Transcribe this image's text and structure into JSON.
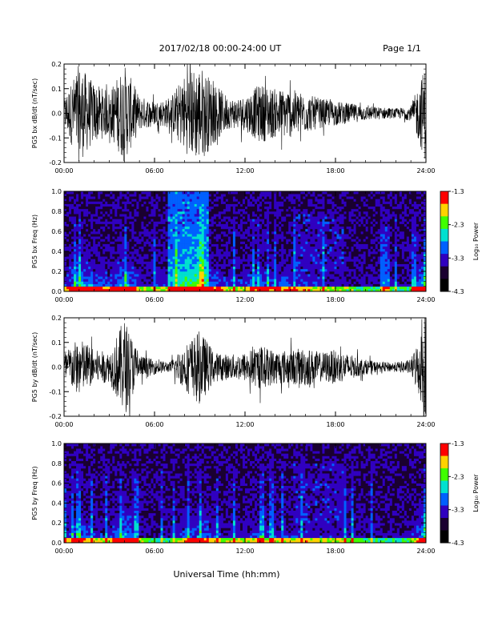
{
  "header": {
    "title": "2017/02/18  00:00-24:00 UT",
    "page": "Page 1/1"
  },
  "xlabel": "Universal Time (hh:mm)",
  "colorbar": {
    "label": "Log₁₀ Power",
    "ticks": [
      "-1.3",
      "-2.3",
      "-3.3",
      "-4.3"
    ],
    "colors": [
      "#ff0000",
      "#ffd200",
      "#40ff00",
      "#00e0d0",
      "#0060ff",
      "#3000c0",
      "#1a0030",
      "#000000"
    ]
  },
  "chart_data": [
    {
      "type": "line",
      "title": "",
      "ylabel": "PG5 bx dB/dt (nT/sec)",
      "xlabel": "",
      "xlim": [
        "00:00",
        "24:00"
      ],
      "xticks": [
        "00:00",
        "06:00",
        "12:00",
        "18:00",
        "24:00"
      ],
      "ylim": [
        -0.2,
        0.2
      ],
      "yticks": [
        "-0.2",
        "-0.1",
        "0.0",
        "0.1",
        "0.2"
      ],
      "series": [
        {
          "name": "",
          "envelope_hours": [
            0,
            1,
            2,
            3,
            4,
            5,
            6,
            7,
            8,
            9,
            10,
            11,
            12,
            13,
            14,
            15,
            16,
            17,
            18,
            19,
            20,
            21,
            22,
            23,
            24
          ],
          "amplitude": [
            0.06,
            0.2,
            0.12,
            0.09,
            0.2,
            0.07,
            0.05,
            0.06,
            0.16,
            0.2,
            0.12,
            0.06,
            0.07,
            0.12,
            0.1,
            0.1,
            0.08,
            0.06,
            0.05,
            0.04,
            0.03,
            0.025,
            0.02,
            0.03,
            0.2
          ]
        }
      ]
    },
    {
      "type": "heatmap",
      "title": "",
      "ylabel": "PG5 bx Freq (Hz)",
      "xlim": [
        "00:00",
        "24:00"
      ],
      "xticks": [
        "00:00",
        "06:00",
        "12:00",
        "18:00",
        "24:00"
      ],
      "ylim": [
        0.0,
        1.0
      ],
      "yticks": [
        "0.0",
        "0.2",
        "0.4",
        "0.6",
        "0.8",
        "1.0"
      ],
      "zlabel": "Log10 Power",
      "zlim": [
        -4.3,
        -1.3
      ]
    },
    {
      "type": "line",
      "title": "",
      "ylabel": "PG5 by dB/dt (nT/sec)",
      "xlabel": "",
      "xlim": [
        "00:00",
        "24:00"
      ],
      "xticks": [
        "00:00",
        "06:00",
        "12:00",
        "18:00",
        "24:00"
      ],
      "ylim": [
        -0.2,
        0.2
      ],
      "yticks": [
        "-0.2",
        "-0.1",
        "0.0",
        "0.1",
        "0.2"
      ],
      "series": [
        {
          "name": "",
          "envelope_hours": [
            0,
            1,
            2,
            3,
            4,
            5,
            6,
            7,
            8,
            9,
            10,
            11,
            12,
            13,
            14,
            15,
            16,
            17,
            18,
            19,
            20,
            21,
            22,
            23,
            24
          ],
          "amplitude": [
            0.06,
            0.12,
            0.07,
            0.06,
            0.2,
            0.05,
            0.03,
            0.02,
            0.09,
            0.15,
            0.06,
            0.05,
            0.06,
            0.09,
            0.07,
            0.07,
            0.08,
            0.06,
            0.07,
            0.05,
            0.03,
            0.02,
            0.02,
            0.03,
            0.2
          ]
        }
      ]
    },
    {
      "type": "heatmap",
      "title": "",
      "ylabel": "PG5 by Freq (Hz)",
      "xlim": [
        "00:00",
        "24:00"
      ],
      "xticks": [
        "00:00",
        "06:00",
        "12:00",
        "18:00",
        "24:00"
      ],
      "ylim": [
        0.0,
        1.0
      ],
      "yticks": [
        "0.0",
        "0.2",
        "0.4",
        "0.6",
        "0.8",
        "1.0"
      ],
      "zlabel": "Log10 Power",
      "zlim": [
        -4.3,
        -1.3
      ]
    }
  ]
}
